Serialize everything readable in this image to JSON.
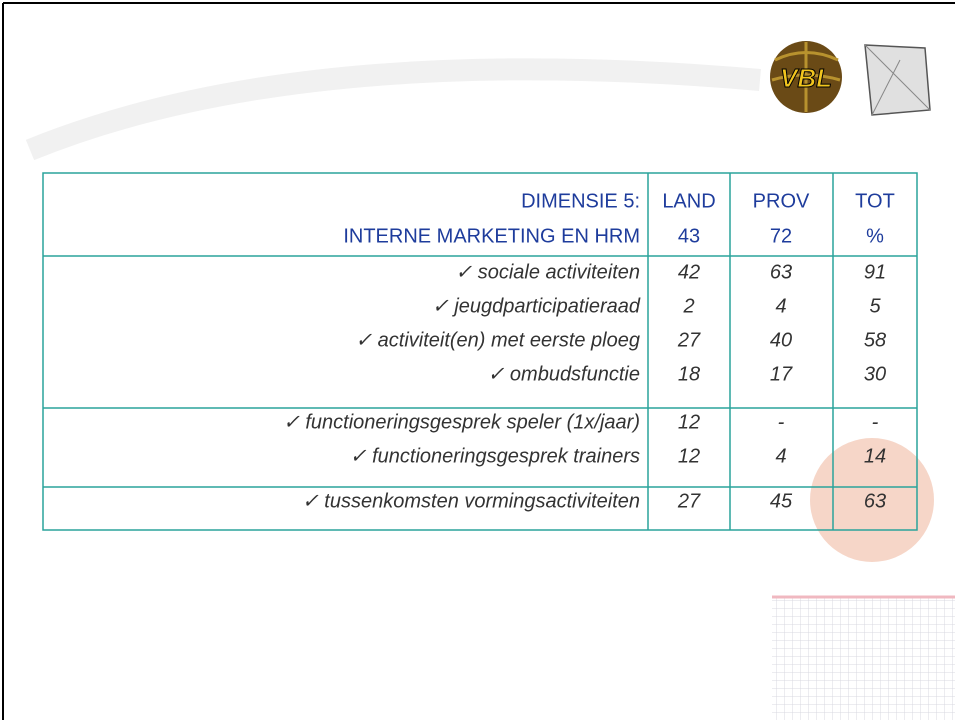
{
  "logos": {
    "vbl": "VBL"
  },
  "table": {
    "header": [
      [
        "DIMENSIE 5:",
        "LAND",
        "PROV",
        "TOT"
      ],
      [
        "INTERNE MARKETING EN HRM",
        43,
        72,
        "%"
      ]
    ],
    "groups": [
      [
        [
          "✓ sociale activiteiten",
          42,
          63,
          91
        ],
        [
          "✓ jeugdparticipatieraad",
          2,
          4,
          5
        ],
        [
          "✓ activiteit(en) met eerste ploeg",
          27,
          40,
          58
        ],
        [
          "✓ ombudsfunctie",
          18,
          17,
          30
        ]
      ],
      [
        [
          "✓ functioneringsgesprek speler (1x/jaar)",
          12,
          "-",
          "-"
        ],
        [
          "✓ functioneringsgesprek trainers",
          12,
          4,
          14
        ]
      ],
      [
        [
          "✓ tussenkomsten vormingsactiviteiten",
          27,
          45,
          63
        ]
      ]
    ]
  }
}
